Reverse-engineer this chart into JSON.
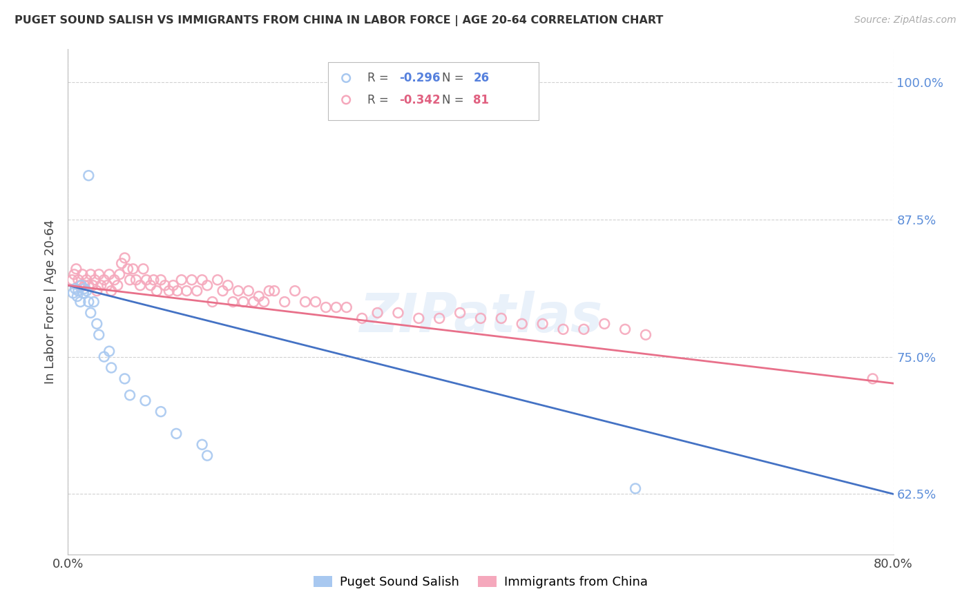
{
  "title": "PUGET SOUND SALISH VS IMMIGRANTS FROM CHINA IN LABOR FORCE | AGE 20-64 CORRELATION CHART",
  "source": "Source: ZipAtlas.com",
  "ylabel": "In Labor Force | Age 20-64",
  "xlim": [
    0.0,
    0.8
  ],
  "ylim": [
    0.57,
    1.03
  ],
  "yticks": [
    0.625,
    0.75,
    0.875,
    1.0
  ],
  "ytick_labels": [
    "62.5%",
    "75.0%",
    "87.5%",
    "100.0%"
  ],
  "xticks": [
    0.0,
    0.8
  ],
  "xtick_labels": [
    "0.0%",
    "80.0%"
  ],
  "blue_R": "-0.296",
  "blue_N": "26",
  "pink_R": "-0.342",
  "pink_N": "81",
  "blue_color": "#a8c8f0",
  "pink_color": "#f5a8bc",
  "blue_line_color": "#4472c4",
  "pink_line_color": "#e8708a",
  "blue_line_x0": 0.0,
  "blue_line_y0": 0.815,
  "blue_line_x1": 0.8,
  "blue_line_y1": 0.625,
  "pink_line_x0": 0.0,
  "pink_line_y0": 0.815,
  "pink_line_x1": 0.78,
  "pink_line_y1": 0.728,
  "blue_scatter_x": [
    0.005,
    0.007,
    0.009,
    0.01,
    0.012,
    0.013,
    0.015,
    0.016,
    0.018,
    0.02,
    0.022,
    0.025,
    0.028,
    0.03,
    0.035,
    0.04,
    0.042,
    0.055,
    0.06,
    0.075,
    0.09,
    0.105,
    0.13,
    0.135,
    0.55,
    0.02
  ],
  "blue_scatter_y": [
    0.808,
    0.812,
    0.805,
    0.81,
    0.8,
    0.815,
    0.808,
    0.812,
    0.81,
    0.8,
    0.79,
    0.8,
    0.78,
    0.77,
    0.75,
    0.755,
    0.74,
    0.73,
    0.715,
    0.71,
    0.7,
    0.68,
    0.67,
    0.66,
    0.63,
    0.915
  ],
  "pink_scatter_x": [
    0.004,
    0.006,
    0.008,
    0.01,
    0.012,
    0.014,
    0.016,
    0.018,
    0.02,
    0.022,
    0.024,
    0.026,
    0.028,
    0.03,
    0.032,
    0.035,
    0.038,
    0.04,
    0.042,
    0.045,
    0.048,
    0.05,
    0.052,
    0.055,
    0.058,
    0.06,
    0.063,
    0.066,
    0.07,
    0.073,
    0.076,
    0.08,
    0.083,
    0.086,
    0.09,
    0.094,
    0.098,
    0.102,
    0.106,
    0.11,
    0.115,
    0.12,
    0.125,
    0.13,
    0.135,
    0.14,
    0.145,
    0.15,
    0.155,
    0.16,
    0.165,
    0.17,
    0.175,
    0.18,
    0.185,
    0.19,
    0.195,
    0.2,
    0.21,
    0.22,
    0.23,
    0.24,
    0.25,
    0.26,
    0.27,
    0.285,
    0.3,
    0.32,
    0.34,
    0.36,
    0.38,
    0.4,
    0.42,
    0.44,
    0.46,
    0.48,
    0.5,
    0.52,
    0.54,
    0.56,
    0.78
  ],
  "pink_scatter_y": [
    0.82,
    0.825,
    0.83,
    0.82,
    0.815,
    0.825,
    0.815,
    0.82,
    0.815,
    0.825,
    0.815,
    0.82,
    0.81,
    0.825,
    0.815,
    0.82,
    0.815,
    0.825,
    0.81,
    0.82,
    0.815,
    0.825,
    0.835,
    0.84,
    0.83,
    0.82,
    0.83,
    0.82,
    0.815,
    0.83,
    0.82,
    0.815,
    0.82,
    0.81,
    0.82,
    0.815,
    0.81,
    0.815,
    0.81,
    0.82,
    0.81,
    0.82,
    0.81,
    0.82,
    0.815,
    0.8,
    0.82,
    0.81,
    0.815,
    0.8,
    0.81,
    0.8,
    0.81,
    0.8,
    0.805,
    0.8,
    0.81,
    0.81,
    0.8,
    0.81,
    0.8,
    0.8,
    0.795,
    0.795,
    0.795,
    0.785,
    0.79,
    0.79,
    0.785,
    0.785,
    0.79,
    0.785,
    0.785,
    0.78,
    0.78,
    0.775,
    0.775,
    0.78,
    0.775,
    0.77,
    0.73
  ],
  "watermark": "ZIPatlas"
}
